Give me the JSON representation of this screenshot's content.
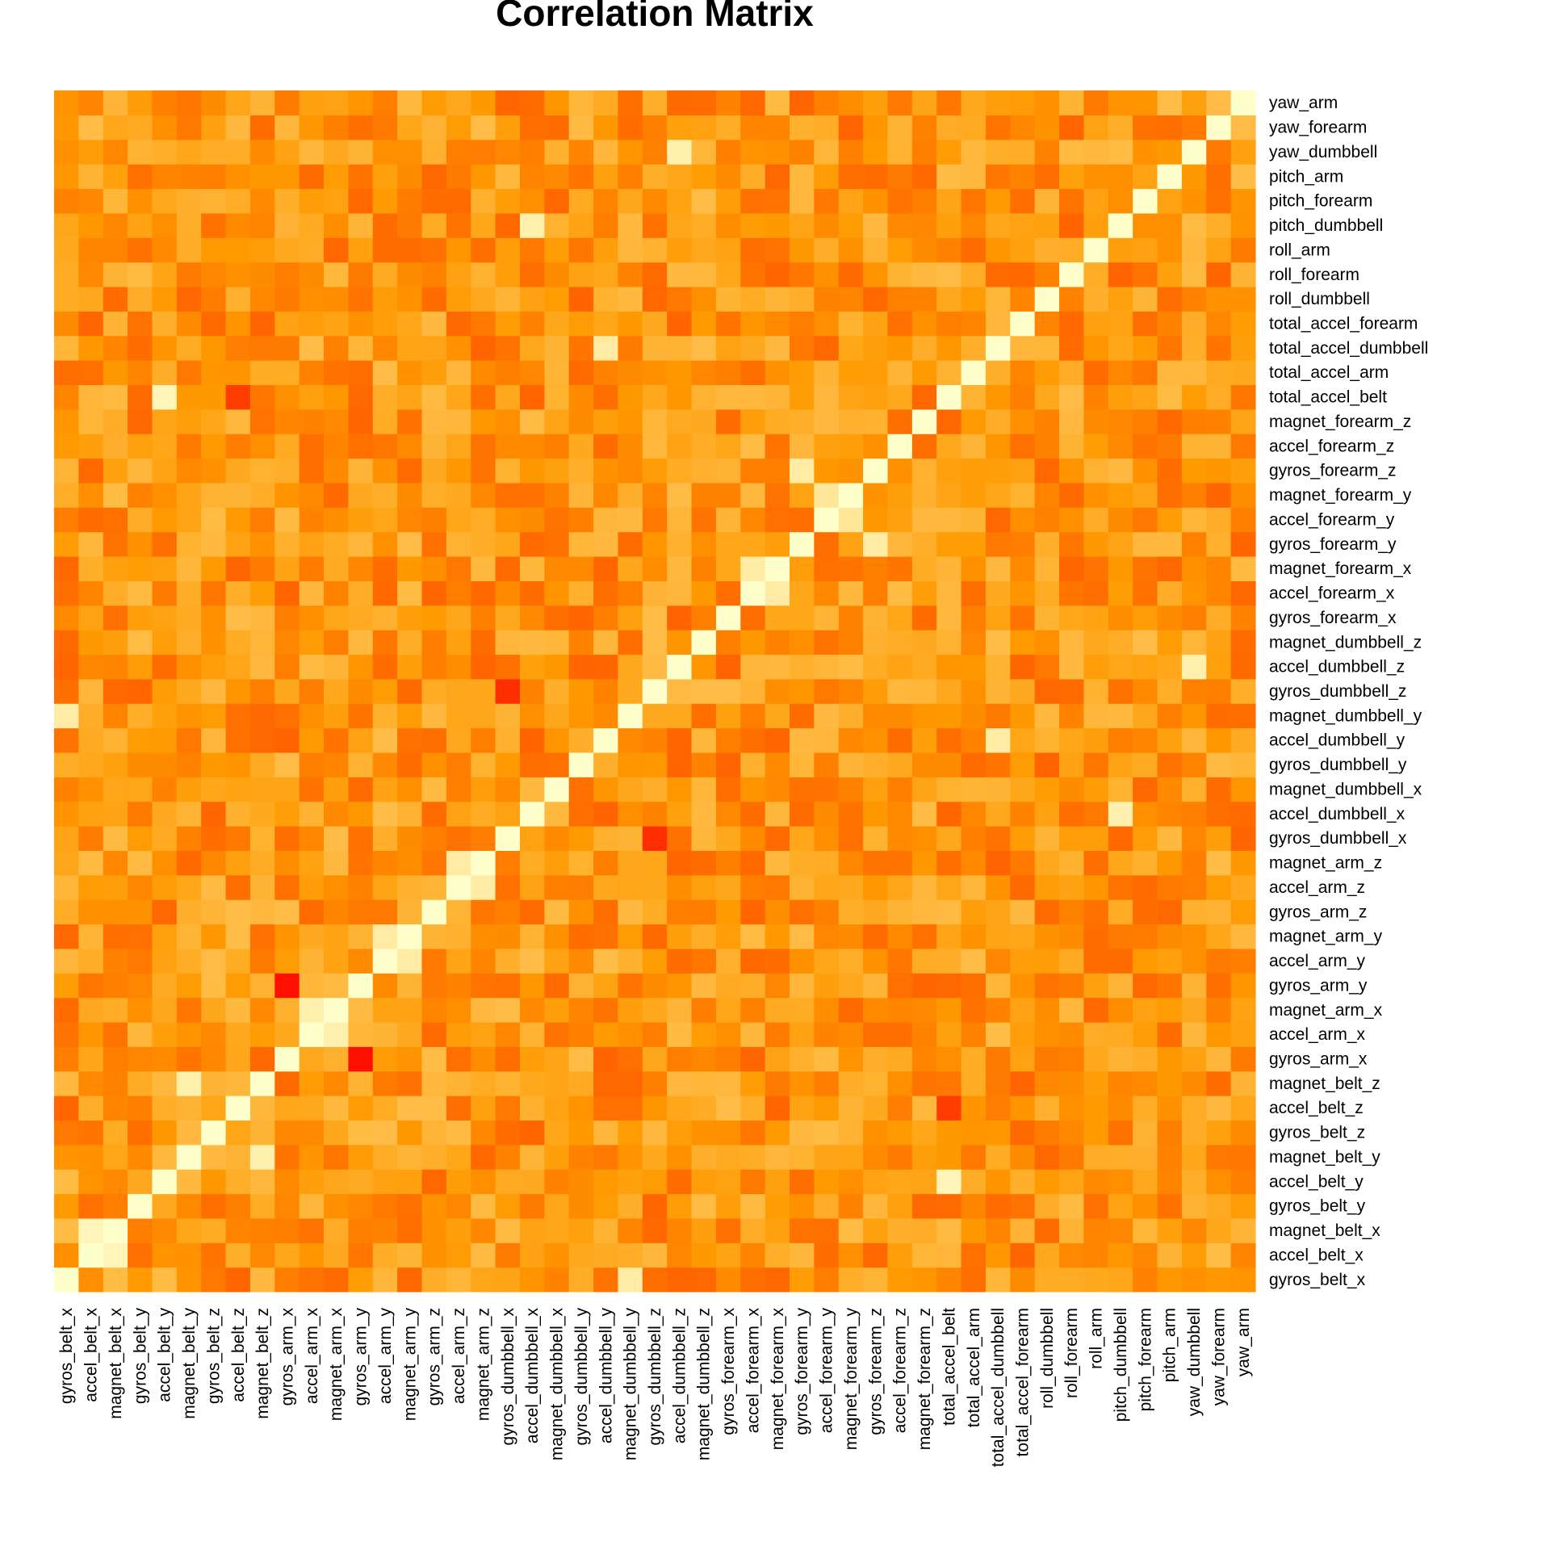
{
  "chart_data": {
    "type": "heatmap",
    "title": "Correlation Matrix",
    "xlabel": "",
    "ylabel": "",
    "variables": [
      "gyros_belt_x",
      "accel_belt_x",
      "magnet_belt_x",
      "gyros_belt_y",
      "accel_belt_y",
      "magnet_belt_y",
      "gyros_belt_z",
      "accel_belt_z",
      "magnet_belt_z",
      "gyros_arm_x",
      "accel_arm_x",
      "magnet_arm_x",
      "gyros_arm_y",
      "accel_arm_y",
      "magnet_arm_y",
      "gyros_arm_z",
      "accel_arm_z",
      "magnet_arm_z",
      "gyros_dumbbell_x",
      "accel_dumbbell_x",
      "magnet_dumbbell_x",
      "gyros_dumbbell_y",
      "accel_dumbbell_y",
      "magnet_dumbbell_y",
      "gyros_dumbbell_z",
      "accel_dumbbell_z",
      "magnet_dumbbell_z",
      "gyros_forearm_x",
      "accel_forearm_x",
      "magnet_forearm_x",
      "gyros_forearm_y",
      "accel_forearm_y",
      "magnet_forearm_y",
      "gyros_forearm_z",
      "accel_forearm_z",
      "magnet_forearm_z",
      "total_accel_belt",
      "total_accel_arm",
      "total_accel_dumbbell",
      "total_accel_forearm",
      "roll_dumbbell",
      "roll_forearm",
      "roll_arm",
      "pitch_dumbbell",
      "pitch_forearm",
      "pitch_arm",
      "yaw_dumbbell",
      "yaw_forearm",
      "yaw_arm"
    ],
    "x_order": "left-to-right",
    "y_order": "bottom-to-top",
    "color_scale": {
      "low": "#ff0000",
      "mid": "#ff9900",
      "high": "#ffffcc"
    },
    "diagonal_value": 1.0,
    "strong_pairs": [
      {
        "a": "accel_belt_x",
        "b": "magnet_belt_x",
        "value": 0.9
      },
      {
        "a": "gyros_belt_x",
        "b": "magnet_dumbbell_y",
        "value": 0.8
      },
      {
        "a": "accel_belt_y",
        "b": "total_accel_belt",
        "value": 0.9
      },
      {
        "a": "magnet_belt_y",
        "b": "magnet_belt_z",
        "value": 0.85
      },
      {
        "a": "accel_belt_z",
        "b": "total_accel_belt",
        "value": -0.6
      },
      {
        "a": "gyros_arm_x",
        "b": "gyros_arm_y",
        "value": -0.9
      },
      {
        "a": "accel_arm_x",
        "b": "magnet_arm_x",
        "value": 0.85
      },
      {
        "a": "accel_arm_y",
        "b": "magnet_arm_y",
        "value": 0.8
      },
      {
        "a": "accel_arm_z",
        "b": "magnet_arm_z",
        "value": 0.8
      },
      {
        "a": "gyros_dumbbell_x",
        "b": "gyros_dumbbell_z",
        "value": -0.7
      },
      {
        "a": "accel_dumbbell_x",
        "b": "pitch_dumbbell",
        "value": 0.85
      },
      {
        "a": "accel_dumbbell_z",
        "b": "yaw_dumbbell",
        "value": 0.85
      },
      {
        "a": "gyros_forearm_y",
        "b": "gyros_forearm_z",
        "value": 0.8
      },
      {
        "a": "accel_forearm_x",
        "b": "magnet_forearm_x",
        "value": 0.8
      },
      {
        "a": "accel_forearm_y",
        "b": "magnet_forearm_y",
        "value": 0.75
      },
      {
        "a": "total_accel_dumbbell",
        "b": "accel_dumbbell_y",
        "value": 0.8
      }
    ]
  }
}
